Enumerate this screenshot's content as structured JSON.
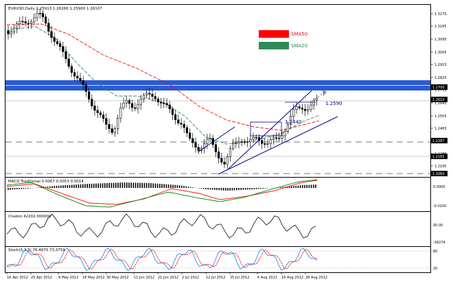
{
  "chart_header": "EURUSD,Daily  1.25913 1.26266 1.25900 1.26107",
  "legend": {
    "sma50_label": "SMA50",
    "sma20_label": "SMA20",
    "sma50_color": "#ff0000",
    "sma20_color": "#2e8b57"
  },
  "annotations": {
    "level_upper": "1.2590",
    "level_lower": "1.2440"
  },
  "price_axis": {
    "ticks": [
      "1.3275",
      "1.3185",
      "1.3095",
      "1.3005",
      "1.2915",
      "1.2825",
      "1.2735",
      "1.2645",
      "1.2555",
      "1.2465",
      "1.2375",
      "1.2285",
      "1.2195",
      "1.2105"
    ],
    "flags": [
      "1.2700",
      "1.2610",
      "1.2287",
      "1.2165",
      "1.2060"
    ]
  },
  "macd_panel": {
    "label": "MACD Traditional 0.0067 0.0053 0.0014",
    "ticks": [
      "0.0000",
      "-0.0100"
    ]
  },
  "chaikin_panel": {
    "label": "Chaikin 42202.000000",
    "ticks": [
      "00.00",
      "-38274"
    ]
  },
  "stoch_panel": {
    "label": "Stoch(5,3,3) 76.4870 73.3759",
    "ticks": [
      "80",
      "20"
    ]
  },
  "date_axis": [
    "16 Apr 2012",
    "25 Apr 2012",
    "9 May 2012",
    "18 May 2012",
    "30 May 2012",
    "11 Jun 2012",
    "21 Jun 2012",
    "2 Jul 2012",
    "12 Jul 2012",
    "25 Jul 2012",
    "6 Aug 2012",
    "16 Aug 2012",
    "28 Aug 2012"
  ],
  "colors": {
    "resistance_band": "#2a5bd7",
    "bull_candle": "#ffffff",
    "bear_candle": "#000000",
    "channel": "#00008b",
    "macd_signal": "#ff0000",
    "macd_line": "#008000",
    "stoch_main": "#1e90ff",
    "stoch_signal": "#ff0000"
  }
}
